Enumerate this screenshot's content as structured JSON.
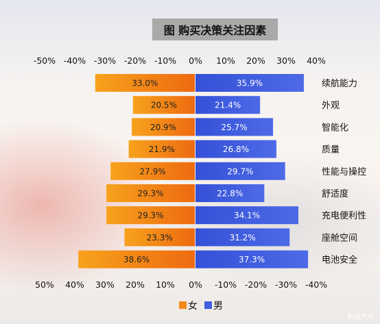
{
  "chart_data": {
    "type": "bar",
    "title": "图 购买决策关注因素",
    "categories": [
      "续航能力",
      "外观",
      "智能化",
      "质量",
      "性能与操控",
      "舒适度",
      "充电便利性",
      "座舱空间",
      "电池安全"
    ],
    "series": [
      {
        "name": "女",
        "values": [
          33.0,
          20.5,
          20.9,
          21.9,
          27.9,
          29.3,
          29.3,
          23.3,
          38.6
        ],
        "labels": [
          "33.0%",
          "20.5%",
          "20.9%",
          "21.9%",
          "27.9%",
          "29.3%",
          "29.3%",
          "23.3%",
          "38.6%"
        ],
        "color": "#f28a1a"
      },
      {
        "name": "男",
        "values": [
          35.9,
          21.4,
          25.7,
          26.8,
          29.7,
          22.8,
          34.1,
          31.2,
          37.3
        ],
        "labels": [
          "35.9%",
          "21.4%",
          "25.7%",
          "26.8%",
          "29.7%",
          "22.8%",
          "34.1%",
          "31.2%",
          "37.3%"
        ],
        "color": "#3f5fdc"
      }
    ],
    "xlim": [
      -40,
      40
    ],
    "top_ticks": [
      "-50%",
      "-40%",
      "-30%",
      "-20%",
      "-10%",
      "0%",
      "10%",
      "20%",
      "30%",
      "40%"
    ],
    "bottom_ticks": [
      "50%",
      "40%",
      "30%",
      "20%",
      "10%",
      "0%",
      "-10%",
      "-20%",
      "-30%",
      "-40%"
    ],
    "legend": {
      "position": "bottom",
      "items": [
        "女",
        "男"
      ]
    },
    "grid": false
  },
  "watermark": "新浪汽车"
}
